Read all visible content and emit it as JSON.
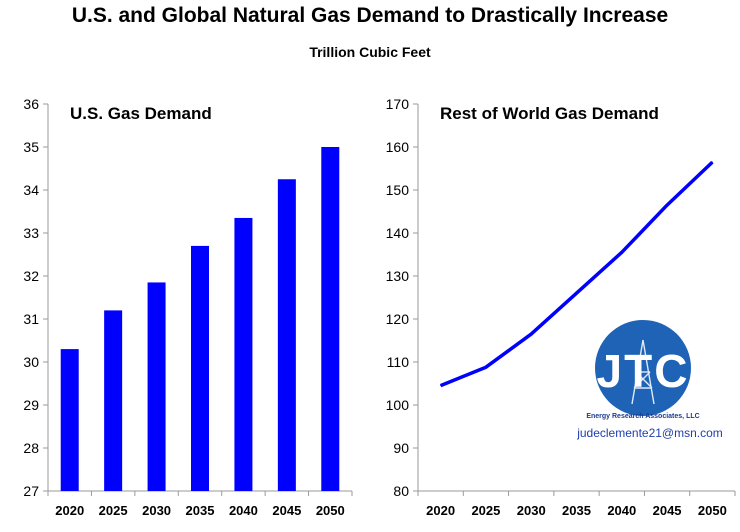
{
  "title": "U.S. and Global Natural Gas Demand to Drastically Increase",
  "subtitle": "Trillion Cubic Feet",
  "colors": {
    "series": "#0000ff",
    "logo": "#1f63b6",
    "email": "#1e3fb0"
  },
  "chart_data": [
    {
      "type": "bar",
      "title": "U.S. Gas Demand",
      "categories": [
        "2020",
        "2025",
        "2030",
        "2035",
        "2040",
        "2045",
        "2050"
      ],
      "values": [
        30.3,
        31.2,
        31.85,
        32.7,
        33.35,
        34.25,
        35.0
      ],
      "ylim": [
        27,
        36
      ],
      "yticks": [
        "27",
        "28",
        "29",
        "30",
        "31",
        "32",
        "33",
        "34",
        "35",
        "36"
      ],
      "xlabel": "",
      "ylabel": "",
      "grid": false
    },
    {
      "type": "line",
      "title": "Rest of World Gas Demand",
      "categories": [
        "2020",
        "2025",
        "2030",
        "2035",
        "2040",
        "2045",
        "2050"
      ],
      "values": [
        104.5,
        108.8,
        116.5,
        126,
        135.5,
        146.5,
        156.5
      ],
      "ylim": [
        80,
        170
      ],
      "yticks": [
        "80",
        "90",
        "100",
        "110",
        "120",
        "130",
        "140",
        "150",
        "160",
        "170"
      ],
      "xlabel": "",
      "ylabel": "",
      "grid": false
    }
  ],
  "logo": {
    "text": "JTC",
    "subtext": "Energy Research Associates, LLC",
    "email": "judeclemente21@msn.com"
  }
}
